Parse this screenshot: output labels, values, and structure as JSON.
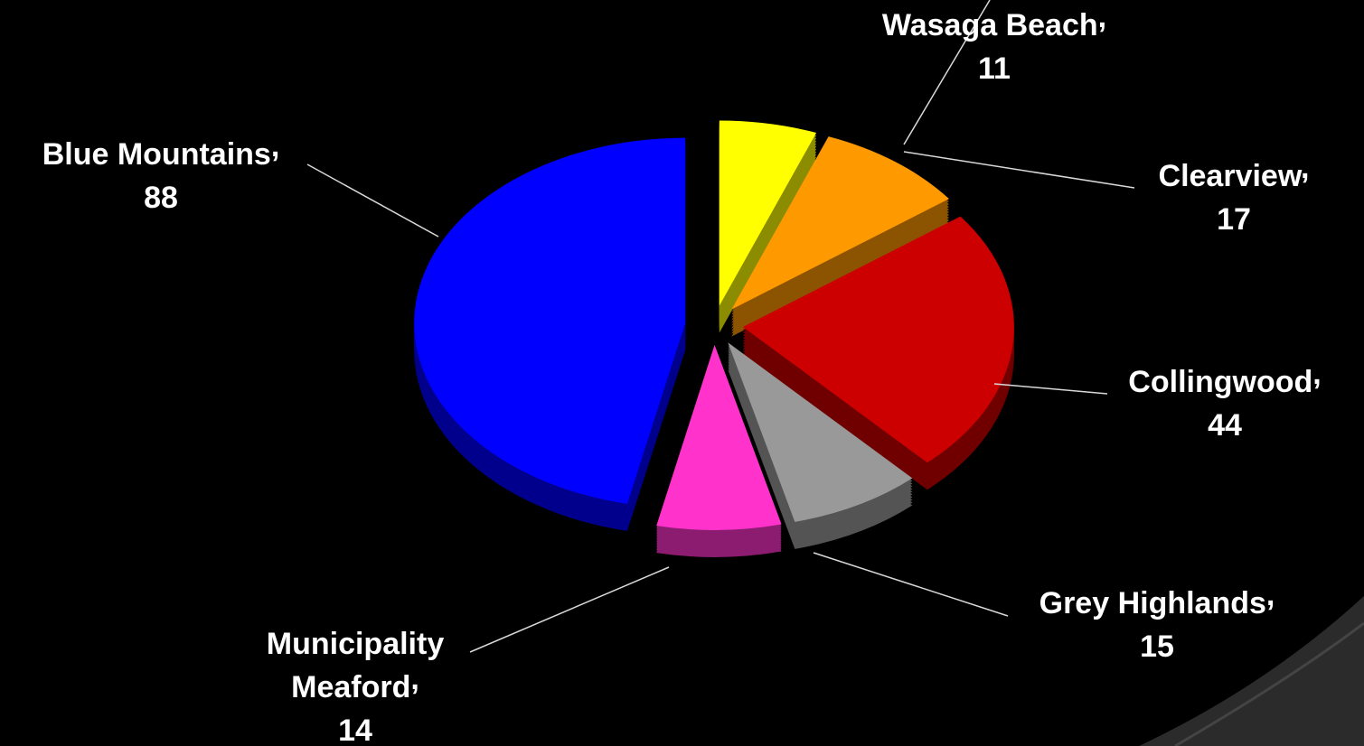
{
  "chart_data": {
    "type": "pie",
    "categories": [
      "Wasaga Beach",
      "Clearview",
      "Collingwood",
      "Grey Highlands",
      "Municipality Meaford",
      "Blue Mountains"
    ],
    "values": [
      11,
      17,
      44,
      15,
      14,
      88
    ],
    "colors": [
      "#ffff00",
      "#ff9900",
      "#cc0000",
      "#999999",
      "#ff33cc",
      "#0000ff"
    ],
    "label_separator": ","
  }
}
